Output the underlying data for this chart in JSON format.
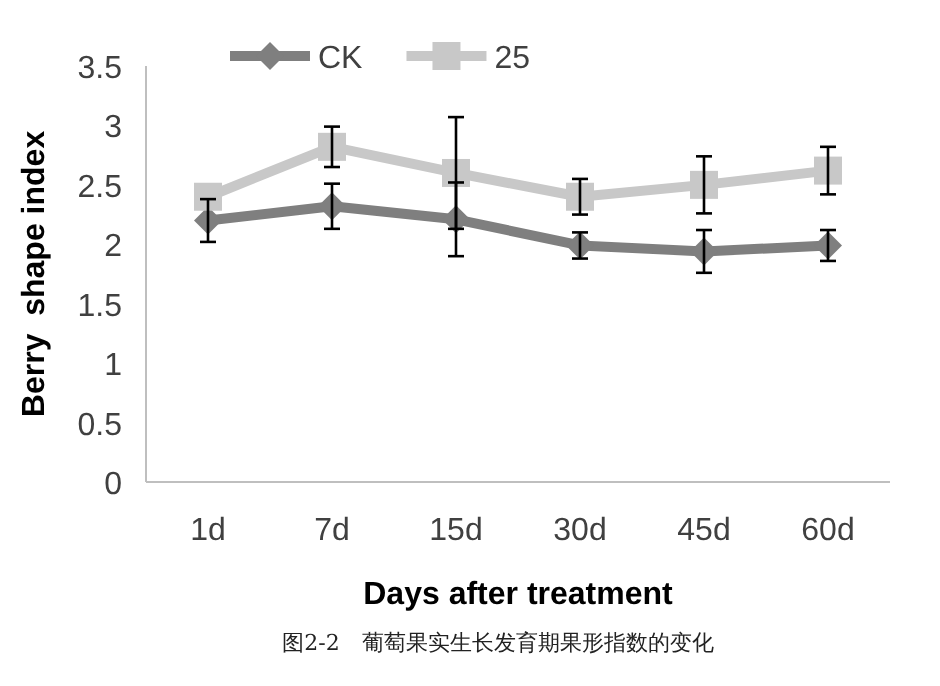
{
  "chart_data": {
    "type": "line",
    "xlabel": "Days after treatment",
    "ylabel": "Berry  shape index",
    "categories": [
      "1d",
      "7d",
      "15d",
      "30d",
      "45d",
      "60d"
    ],
    "series": [
      {
        "name": "CK",
        "color": "#7f7f7f",
        "marker": "diamond",
        "values": [
          2.2,
          2.32,
          2.21,
          1.99,
          1.94,
          1.99
        ],
        "errors": [
          0.18,
          0.19,
          0.31,
          0.11,
          0.18,
          0.13
        ]
      },
      {
        "name": "25",
        "color": "#c8c8c8",
        "marker": "square",
        "values": [
          2.4,
          2.82,
          2.6,
          2.4,
          2.5,
          2.62
        ],
        "errors": [
          null,
          0.17,
          0.47,
          0.15,
          0.24,
          0.2
        ]
      }
    ],
    "ylim": [
      0,
      3.5
    ],
    "yticks": [
      0,
      0.5,
      1,
      1.5,
      2,
      2.5,
      3,
      3.5
    ],
    "grid": false,
    "legend": "top",
    "annotations": [
      "图2-2　葡萄果实生长发育期果形指数的变化"
    ]
  }
}
